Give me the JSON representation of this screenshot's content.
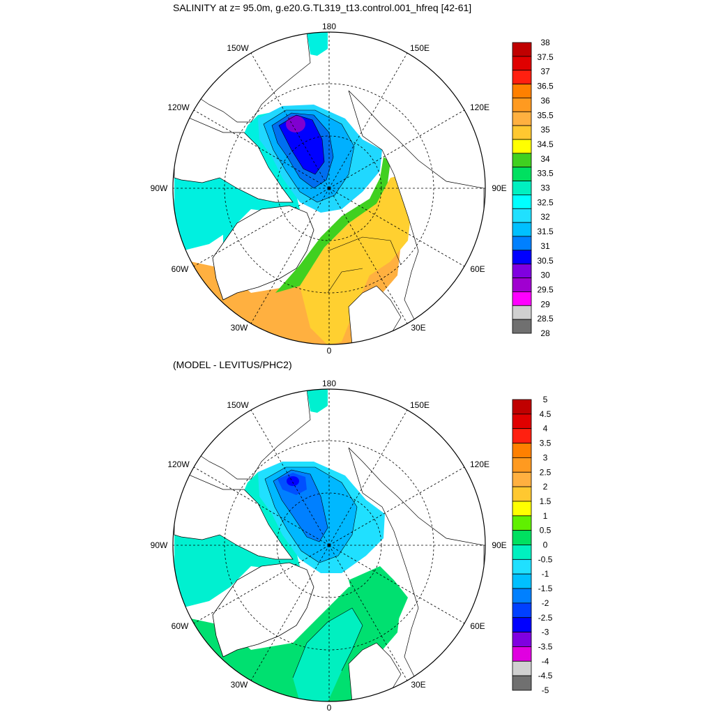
{
  "panels": [
    {
      "title": "SALINITY at z=  95.0m, g.e20.G.TL319_t13.control.001_hfreq [42-61]",
      "lon_labels": [
        "180",
        "150W",
        "150E",
        "120W",
        "120E",
        "90W",
        "90E",
        "60W",
        "60E",
        "30W",
        "30E",
        "0"
      ],
      "colorbar": {
        "labels": [
          "38",
          "37.5",
          "37",
          "36.5",
          "36",
          "35.5",
          "35",
          "34.5",
          "34",
          "33.5",
          "33",
          "32.5",
          "32",
          "31.5",
          "31",
          "30.5",
          "30",
          "29.5",
          "29",
          "28.5",
          "28"
        ],
        "colors": [
          "#c00000",
          "#e00000",
          "#ff2010",
          "#ff8000",
          "#ff9a20",
          "#ffb040",
          "#ffc830",
          "#ffff00",
          "#40d020",
          "#00e060",
          "#00f0c0",
          "#00ffff",
          "#20e0ff",
          "#00c0ff",
          "#0080ff",
          "#0000ff",
          "#8000e0",
          "#a000d0",
          "#ff00ff",
          "#d0d0d0",
          "#707070"
        ]
      }
    },
    {
      "title": "(MODEL - LEVITUS/PHC2)",
      "lon_labels": [
        "180",
        "150W",
        "150E",
        "120W",
        "120E",
        "90W",
        "90E",
        "60W",
        "60E",
        "30W",
        "30E",
        "0"
      ],
      "colorbar": {
        "labels": [
          "5",
          "4.5",
          "4",
          "3.5",
          "3",
          "2.5",
          "2",
          "1.5",
          "1",
          "0.5",
          "0",
          "-0.5",
          "-1",
          "-1.5",
          "-2",
          "-2.5",
          "-3",
          "-3.5",
          "-4",
          "-4.5",
          "-5"
        ],
        "colors": [
          "#c00000",
          "#e00000",
          "#ff2010",
          "#ff8000",
          "#ff9a20",
          "#ffb040",
          "#ffc830",
          "#ffff00",
          "#60f000",
          "#00e060",
          "#00f0c0",
          "#20e0ff",
          "#00c0ff",
          "#0080ff",
          "#0040ff",
          "#0000ff",
          "#8000e0",
          "#e000e0",
          "#d0d0d0",
          "#707070"
        ]
      }
    }
  ]
}
